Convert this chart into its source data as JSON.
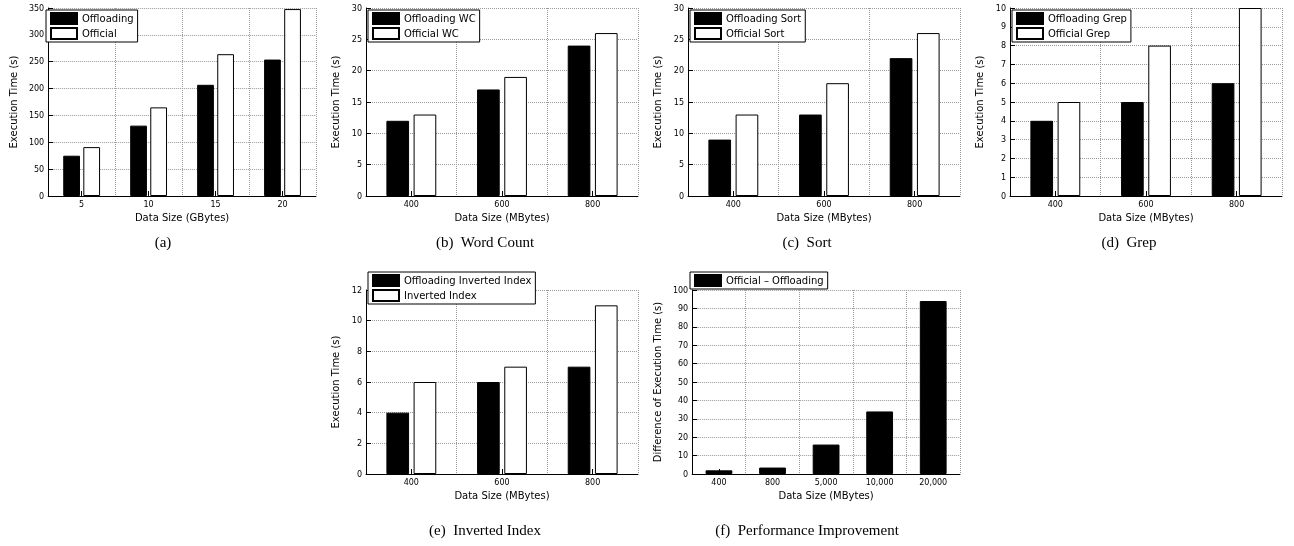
{
  "chart_data": [
    {
      "type": "bar",
      "title": "(a)",
      "xlabel": "Data Size (GBytes)",
      "ylabel": "Execution Time (s)",
      "categories": [
        "5",
        "10",
        "15",
        "20"
      ],
      "series": [
        {
          "name": "Offloading",
          "color": "#000000",
          "values": [
            75,
            131,
            207,
            254
          ]
        },
        {
          "name": "Official",
          "color": "#ffffff",
          "values": [
            91,
            165,
            264,
            348
          ]
        }
      ],
      "ylim": [
        0,
        350
      ],
      "yticks": [
        0,
        50,
        100,
        150,
        200,
        250,
        300,
        350
      ],
      "grid": true,
      "legend": "top left"
    },
    {
      "type": "bar",
      "title": "(b)  Word Count",
      "xlabel": "Data Size (MBytes)",
      "ylabel": "Execution Time (s)",
      "categories": [
        "400",
        "600",
        "800"
      ],
      "series": [
        {
          "name": "Offloading WC",
          "color": "#000000",
          "values": [
            12,
            17,
            24
          ]
        },
        {
          "name": "Official WC",
          "color": "#ffffff",
          "values": [
            13,
            19,
            26
          ]
        }
      ],
      "ylim": [
        0,
        30
      ],
      "yticks": [
        0,
        5,
        10,
        15,
        20,
        25,
        30
      ],
      "grid": true,
      "legend": "top left"
    },
    {
      "type": "bar",
      "title": "(c)  Sort",
      "xlabel": "Data Size (MBytes)",
      "ylabel": "Execution Time (s)",
      "categories": [
        "400",
        "600",
        "800"
      ],
      "series": [
        {
          "name": "Offloading Sort",
          "color": "#000000",
          "values": [
            9,
            13,
            22
          ]
        },
        {
          "name": "Official Sort",
          "color": "#ffffff",
          "values": [
            13,
            18,
            26
          ]
        }
      ],
      "ylim": [
        0,
        30
      ],
      "yticks": [
        0,
        5,
        10,
        15,
        20,
        25,
        30
      ],
      "grid": true,
      "legend": "top left"
    },
    {
      "type": "bar",
      "title": "(d)  Grep",
      "xlabel": "Data Size (MBytes)",
      "ylabel": "Execution Time (s)",
      "categories": [
        "400",
        "600",
        "800"
      ],
      "series": [
        {
          "name": "Offloading Grep",
          "color": "#000000",
          "values": [
            4,
            5,
            6
          ]
        },
        {
          "name": "Official Grep",
          "color": "#ffffff",
          "values": [
            5,
            8,
            10
          ]
        }
      ],
      "ylim": [
        0,
        10
      ],
      "yticks": [
        0,
        1,
        2,
        3,
        4,
        5,
        6,
        7,
        8,
        9,
        10
      ],
      "grid": true,
      "legend": "top left"
    },
    {
      "type": "bar",
      "title": "(e)  Inverted Index",
      "xlabel": "Data Size (MBytes)",
      "ylabel": "Execution Time (s)",
      "categories": [
        "400",
        "600",
        "800"
      ],
      "series": [
        {
          "name": "Offloading Inverted Index",
          "color": "#000000",
          "values": [
            4,
            6,
            7
          ]
        },
        {
          "name": "Inverted Index",
          "color": "#ffffff",
          "values": [
            6,
            7,
            11
          ]
        }
      ],
      "ylim": [
        0,
        12
      ],
      "yticks": [
        0,
        2,
        4,
        6,
        8,
        10,
        12
      ],
      "grid": true,
      "legend": "top left"
    },
    {
      "type": "bar",
      "title": "(f)  Performance Improvement",
      "xlabel": "Data Size (MBytes)",
      "ylabel": "Difference of Execution Time (s)",
      "categories": [
        "400",
        "800",
        "5,000",
        "10,000",
        "20,000"
      ],
      "series": [
        {
          "name": "Official – Offloading",
          "color": "#000000",
          "values": [
            2,
            3.5,
            16,
            34,
            94
          ]
        }
      ],
      "ylim": [
        0,
        100
      ],
      "yticks": [
        0,
        10,
        20,
        30,
        40,
        50,
        60,
        70,
        80,
        90,
        100
      ],
      "grid": true,
      "legend": "top left"
    }
  ]
}
